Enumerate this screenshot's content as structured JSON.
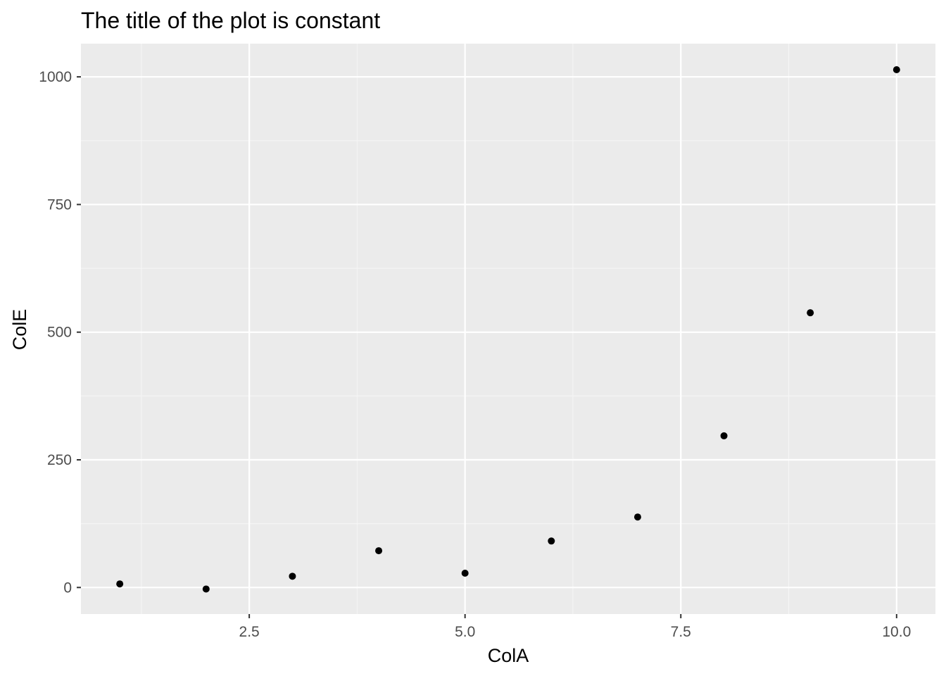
{
  "chart_data": {
    "type": "scatter",
    "title": "The title of the plot is constant",
    "xlabel": "ColA",
    "ylabel": "ColE",
    "x": [
      1,
      2,
      3,
      4,
      5,
      6,
      7,
      8,
      9,
      10
    ],
    "y": [
      7,
      -3,
      22,
      72,
      28,
      91,
      138,
      297,
      538,
      1014
    ],
    "xlim": [
      0.55,
      10.45
    ],
    "ylim": [
      -52,
      1065
    ],
    "x_ticks": [
      2.5,
      5.0,
      7.5,
      10.0
    ],
    "x_tick_labels": [
      "2.5",
      "5.0",
      "7.5",
      "10.0"
    ],
    "y_ticks": [
      0,
      250,
      500,
      750,
      1000
    ],
    "y_tick_labels": [
      "0",
      "250",
      "500",
      "750",
      "1000"
    ],
    "grid": true,
    "legend": "none",
    "colors": {
      "panel_background": "#ebebeb",
      "grid_major": "#ffffff",
      "grid_minor": "#f5f5f5",
      "point": "#000000",
      "tick": "#333333"
    }
  }
}
